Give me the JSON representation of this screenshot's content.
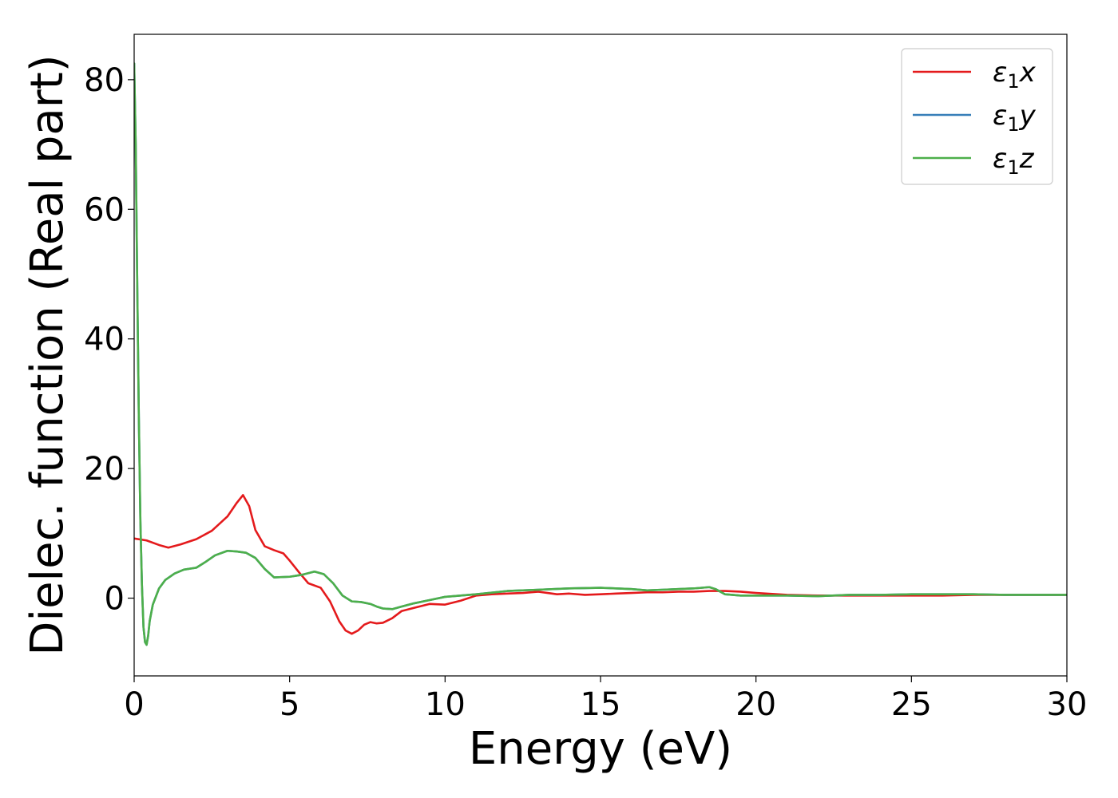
{
  "chart_data": {
    "type": "line",
    "title": "",
    "xlabel": "Energy (eV)",
    "ylabel": "Dielec. function (Real part)",
    "xlim": [
      0,
      30
    ],
    "ylim": [
      -12,
      87
    ],
    "xticks": [
      0,
      5,
      10,
      15,
      20,
      25,
      30
    ],
    "yticks": [
      0,
      20,
      40,
      60,
      80
    ],
    "grid": false,
    "legend_position": "top-right",
    "series": [
      {
        "name": "ε1x",
        "legend_main": "ε",
        "legend_sub": "1",
        "legend_var": "x",
        "color": "#e41a1c",
        "x": [
          0,
          0.4,
          0.8,
          1.1,
          1.5,
          2.0,
          2.5,
          3.0,
          3.3,
          3.5,
          3.7,
          3.9,
          4.2,
          4.5,
          4.8,
          5.0,
          5.3,
          5.6,
          6.0,
          6.3,
          6.6,
          6.8,
          7.0,
          7.2,
          7.4,
          7.6,
          7.8,
          8.0,
          8.3,
          8.6,
          9.0,
          9.5,
          10.0,
          10.5,
          11.0,
          11.5,
          12.0,
          12.5,
          13.0,
          13.3,
          13.6,
          14.0,
          14.5,
          15.0,
          15.5,
          16.0,
          16.5,
          17.0,
          17.5,
          18.0,
          18.5,
          19.0,
          19.5,
          20.0,
          21.0,
          22.0,
          23.0,
          24.0,
          25.0,
          26.0,
          27.0,
          28.0,
          29.0,
          30.0
        ],
        "y": [
          9.2,
          8.9,
          8.2,
          7.8,
          8.3,
          9.1,
          10.4,
          12.6,
          14.7,
          15.9,
          14.2,
          10.5,
          8.0,
          7.4,
          6.9,
          5.8,
          4.0,
          2.3,
          1.6,
          -0.5,
          -3.6,
          -5.0,
          -5.5,
          -5.0,
          -4.1,
          -3.7,
          -3.9,
          -3.8,
          -3.1,
          -2.0,
          -1.5,
          -0.9,
          -1.0,
          -0.4,
          0.4,
          0.6,
          0.7,
          0.8,
          1.0,
          0.8,
          0.6,
          0.7,
          0.5,
          0.6,
          0.7,
          0.8,
          0.9,
          0.9,
          1.0,
          1.0,
          1.1,
          1.1,
          1.0,
          0.8,
          0.5,
          0.4,
          0.4,
          0.4,
          0.4,
          0.4,
          0.5,
          0.5,
          0.5,
          0.5
        ]
      },
      {
        "name": "ε1y",
        "legend_main": "ε",
        "legend_sub": "1",
        "legend_var": "y",
        "color": "#377eb8",
        "x": [
          0,
          0.05,
          0.1,
          0.15,
          0.2,
          0.25,
          0.3,
          0.35,
          0.4,
          0.45,
          0.5,
          0.6,
          0.8,
          1.0,
          1.3,
          1.6,
          2.0,
          2.3,
          2.6,
          3.0,
          3.3,
          3.6,
          3.9,
          4.2,
          4.5,
          5.0,
          5.4,
          5.8,
          6.1,
          6.4,
          6.7,
          7.0,
          7.3,
          7.6,
          7.8,
          8.0,
          8.3,
          8.6,
          9.0,
          9.5,
          10.0,
          11.0,
          12.0,
          13.0,
          14.0,
          15.0,
          16.0,
          16.5,
          17.0,
          17.5,
          18.0,
          18.5,
          18.7,
          19.0,
          19.5,
          20.0,
          21.0,
          22.0,
          23.0,
          24.0,
          25.0,
          26.0,
          27.0,
          28.0,
          29.0,
          30.0
        ],
        "y": [
          82.5,
          70.0,
          48.0,
          28.0,
          12.0,
          2.0,
          -4.5,
          -6.8,
          -7.2,
          -5.8,
          -3.5,
          -1.0,
          1.5,
          2.8,
          3.8,
          4.4,
          4.7,
          5.6,
          6.6,
          7.3,
          7.2,
          7.0,
          6.2,
          4.5,
          3.2,
          3.3,
          3.6,
          4.1,
          3.7,
          2.3,
          0.4,
          -0.5,
          -0.6,
          -0.9,
          -1.3,
          -1.6,
          -1.7,
          -1.3,
          -0.8,
          -0.3,
          0.2,
          0.6,
          1.1,
          1.3,
          1.5,
          1.6,
          1.4,
          1.2,
          1.3,
          1.4,
          1.5,
          1.7,
          1.4,
          0.6,
          0.4,
          0.4,
          0.4,
          0.3,
          0.5,
          0.5,
          0.6,
          0.6,
          0.6,
          0.5,
          0.5,
          0.5
        ]
      },
      {
        "name": "ε1z",
        "legend_main": "ε",
        "legend_sub": "1",
        "legend_var": "z",
        "color": "#4daf4a",
        "x": [
          0,
          0.05,
          0.1,
          0.15,
          0.2,
          0.25,
          0.3,
          0.35,
          0.4,
          0.45,
          0.5,
          0.6,
          0.8,
          1.0,
          1.3,
          1.6,
          2.0,
          2.3,
          2.6,
          3.0,
          3.3,
          3.6,
          3.9,
          4.2,
          4.5,
          5.0,
          5.4,
          5.8,
          6.1,
          6.4,
          6.7,
          7.0,
          7.3,
          7.6,
          7.8,
          8.0,
          8.3,
          8.6,
          9.0,
          9.5,
          10.0,
          11.0,
          12.0,
          13.0,
          14.0,
          15.0,
          16.0,
          16.5,
          17.0,
          17.5,
          18.0,
          18.5,
          18.7,
          19.0,
          19.5,
          20.0,
          21.0,
          22.0,
          23.0,
          24.0,
          25.0,
          26.0,
          27.0,
          28.0,
          29.0,
          30.0
        ],
        "y": [
          82.5,
          70.0,
          48.0,
          28.0,
          12.0,
          2.0,
          -4.5,
          -6.8,
          -7.2,
          -5.8,
          -3.5,
          -1.0,
          1.5,
          2.8,
          3.8,
          4.4,
          4.7,
          5.6,
          6.6,
          7.3,
          7.2,
          7.0,
          6.2,
          4.5,
          3.2,
          3.3,
          3.6,
          4.1,
          3.7,
          2.3,
          0.4,
          -0.5,
          -0.6,
          -0.9,
          -1.3,
          -1.6,
          -1.7,
          -1.3,
          -0.8,
          -0.3,
          0.2,
          0.6,
          1.1,
          1.3,
          1.5,
          1.6,
          1.4,
          1.2,
          1.3,
          1.4,
          1.5,
          1.7,
          1.4,
          0.6,
          0.4,
          0.4,
          0.4,
          0.3,
          0.5,
          0.5,
          0.6,
          0.6,
          0.6,
          0.5,
          0.5,
          0.5
        ]
      }
    ]
  }
}
